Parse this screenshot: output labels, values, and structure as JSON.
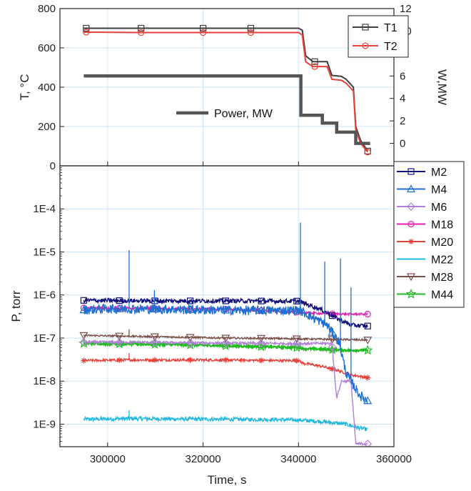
{
  "chart_data": [
    {
      "panel": "top",
      "type": "line",
      "xlabel": "",
      "ylabel": "T, °C",
      "y2label": "W,MW",
      "xlim": [
        290000,
        360000
      ],
      "ylim": [
        0,
        800
      ],
      "y2lim": [
        -2,
        12
      ],
      "yticks": [
        "0",
        "200",
        "400",
        "600",
        "800"
      ],
      "y2ticks": [
        "0",
        "2",
        "4",
        "6",
        "8",
        "10",
        "12"
      ],
      "grid": true,
      "legend_placement": "top-right",
      "series": [
        {
          "name": "T1",
          "axis": "left",
          "color": "#3d3d3d",
          "marker": "square",
          "x": [
            295000,
            307000,
            320000,
            330000,
            340000,
            340800,
            341500,
            343000,
            346000,
            347000,
            349000,
            350000,
            351500,
            352000,
            353000,
            354500
          ],
          "y": [
            700,
            700,
            700,
            700,
            700,
            690,
            560,
            530,
            530,
            460,
            455,
            440,
            400,
            200,
            130,
            75
          ],
          "markers_x": [
            295500,
            307000,
            320000,
            330000,
            343400,
            354500
          ]
        },
        {
          "name": "T2",
          "axis": "left",
          "color": "#e8413a",
          "marker": "circle",
          "x": [
            295000,
            307000,
            320000,
            330000,
            340000,
            340800,
            341500,
            343000,
            346000,
            347000,
            349000,
            350000,
            351500,
            352000,
            353000,
            354500
          ],
          "y": [
            680,
            678,
            678,
            678,
            678,
            665,
            530,
            505,
            505,
            440,
            435,
            420,
            380,
            185,
            115,
            70
          ],
          "markers_x": [
            295500,
            307000,
            320000,
            330000,
            343400,
            354500
          ]
        },
        {
          "name": "Power, MW",
          "axis": "right",
          "color": "#555555",
          "marker": "none",
          "x": [
            295000,
            340500,
            340500,
            345000,
            345000,
            348000,
            348000,
            352000,
            352000,
            355000
          ],
          "y": [
            6.0,
            6.0,
            2.5,
            2.5,
            1.8,
            1.8,
            1.0,
            1.0,
            0.0,
            0.0
          ]
        }
      ]
    },
    {
      "panel": "bottom",
      "type": "line",
      "xlabel": "Time, s",
      "ylabel": "P, torr",
      "yscale": "log",
      "xlim": [
        290000,
        360000
      ],
      "ylim": [
        3e-10,
        0.001
      ],
      "xticks": [
        "300000",
        "320000",
        "340000",
        "360000"
      ],
      "yticks": [
        "1E-9",
        "1E-8",
        "1E-7",
        "1E-6",
        "1E-5",
        "1E-4"
      ],
      "grid": true,
      "legend_placement": "top-right",
      "series": [
        {
          "name": "M2",
          "color": "#12127a",
          "marker": "square",
          "x": [
            295000,
            310000,
            325000,
            340000,
            345000,
            348000,
            351000,
            354500
          ],
          "y": [
            7.5e-07,
            7.3e-07,
            7.3e-07,
            7.2e-07,
            4.5e-07,
            2.9e-07,
            2e-07,
            1.9e-07
          ]
        },
        {
          "name": "M4",
          "color": "#1f6fd0",
          "marker": "triangle",
          "x": [
            295000,
            300000,
            310000,
            320000,
            330000,
            340000,
            341000,
            343000,
            346000,
            348500,
            350000,
            351500,
            353000,
            354500
          ],
          "y": [
            4.5e-07,
            4.8e-07,
            4.7e-07,
            4.5e-07,
            4.4e-07,
            4.4e-07,
            4e-07,
            3e-07,
            2e-07,
            8e-08,
            1.5e-08,
            8e-09,
            4.5e-09,
            3.5e-09
          ]
        },
        {
          "name": "M6",
          "color": "#b07fd6",
          "marker": "diamond",
          "x": [
            295000,
            305000,
            315000,
            325000,
            335000,
            340000,
            344000,
            347000,
            348000,
            349000,
            351000,
            352000,
            354500
          ],
          "y": [
            8e-08,
            8e-08,
            7.8e-08,
            7.6e-08,
            7.5e-08,
            7.4e-08,
            7.5e-08,
            7.5e-08,
            4e-09,
            1e-08,
            1e-08,
            3.5e-10,
            3.5e-10
          ]
        },
        {
          "name": "M18",
          "color": "#e020b0",
          "marker": "circle",
          "x": [
            295000,
            310000,
            325000,
            340000,
            345000,
            350000,
            354500
          ],
          "y": [
            5e-07,
            4.9e-07,
            4.7e-07,
            4e-07,
            3.7e-07,
            3.6e-07,
            3.6e-07
          ]
        },
        {
          "name": "M20",
          "color": "#e8413a",
          "marker": "asterisk",
          "x": [
            295000,
            305000,
            315000,
            325000,
            335000,
            340000,
            341000,
            345000,
            348000,
            351000,
            354500
          ],
          "y": [
            3e-08,
            3.1e-08,
            3.1e-08,
            3.1e-08,
            3e-08,
            3e-08,
            2.6e-08,
            2.2e-08,
            1.8e-08,
            1.4e-08,
            1.2e-08
          ]
        },
        {
          "name": "M22",
          "color": "#1fb8e0",
          "marker": "none",
          "x": [
            295000,
            305000,
            315000,
            325000,
            335000,
            340000,
            345000,
            350000,
            352000,
            354500
          ],
          "y": [
            1.3e-09,
            1.35e-09,
            1.32e-09,
            1.3e-09,
            1.28e-09,
            1.25e-09,
            1.15e-09,
            1e-09,
            8.5e-10,
            7.5e-10
          ]
        },
        {
          "name": "M28",
          "color": "#7a5048",
          "marker": "triangle-down",
          "x": [
            295000,
            305000,
            315000,
            325000,
            335000,
            340000,
            345000,
            350000,
            354500
          ],
          "y": [
            1.15e-07,
            1.1e-07,
            1.05e-07,
            1e-07,
            9.8e-08,
            9.6e-08,
            9.4e-08,
            9.2e-08,
            9e-08
          ]
        },
        {
          "name": "M44",
          "color": "#22bb22",
          "marker": "star",
          "x": [
            295000,
            305000,
            315000,
            325000,
            335000,
            340000,
            341000,
            345000,
            350000,
            354500
          ],
          "y": [
            7.5e-08,
            7.3e-08,
            7e-08,
            6.6e-08,
            6.2e-08,
            6e-08,
            5.7e-08,
            5.5e-08,
            5.2e-08,
            5.2e-08
          ]
        }
      ],
      "spikes": [
        {
          "series": "M4",
          "x": 304500,
          "y": 1.1e-05
        },
        {
          "series": "M4",
          "x": 309800,
          "y": 1.3e-06
        },
        {
          "series": "M4",
          "x": 340400,
          "y": 4.8e-05
        },
        {
          "series": "M4",
          "x": 345500,
          "y": 6e-06
        },
        {
          "series": "M4",
          "x": 348800,
          "y": 7e-06
        },
        {
          "series": "M4",
          "x": 351000,
          "y": 1.5e-06
        },
        {
          "series": "M22",
          "x": 304500,
          "y": 2.1e-09
        },
        {
          "series": "M20",
          "x": 304500,
          "y": 4.5e-08
        },
        {
          "series": "M28",
          "x": 304500,
          "y": 1.6e-07
        }
      ]
    }
  ]
}
